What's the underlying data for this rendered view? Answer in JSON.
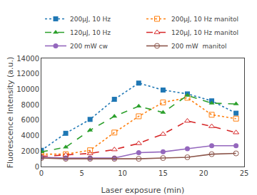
{
  "chart_data": {
    "type": "line",
    "xlabel": "Laser exposure (min)",
    "ylabel": "Fluorescence Intensity (a.u.)",
    "x": [
      0,
      3,
      6,
      9,
      12,
      15,
      18,
      21,
      24
    ],
    "series": [
      {
        "name": "200μJ, 10 Hz",
        "values": [
          2100,
          4300,
          6100,
          8700,
          10800,
          9900,
          9400,
          8500,
          6900
        ],
        "marker": "square",
        "line_style": "dot"
      },
      {
        "name": "200μJ, 10 Hz manitol",
        "values": [
          1600,
          1600,
          2100,
          4400,
          6500,
          8300,
          8900,
          6700,
          6200
        ],
        "marker": "square-open",
        "line_style": "dot"
      },
      {
        "name": "120μJ, 10 Hz",
        "values": [
          1900,
          2500,
          4700,
          6500,
          7800,
          7000,
          9200,
          8200,
          8100
        ],
        "marker": "triangle-up",
        "line_style": "dash"
      },
      {
        "name": "120μJ, 10 Hz manitol",
        "values": [
          1300,
          1500,
          1700,
          2200,
          3000,
          4200,
          5900,
          5200,
          4400
        ],
        "marker": "triangle-up-open",
        "line_style": "dash"
      },
      {
        "name": "200 mW cw",
        "values": [
          1200,
          1100,
          1100,
          1100,
          1800,
          1900,
          2300,
          2700,
          2700
        ],
        "marker": "circle",
        "line_style": "solid"
      },
      {
        "name": "200 mW  manitol",
        "values": [
          1100,
          1000,
          1000,
          1000,
          1000,
          1100,
          1200,
          1600,
          1700
        ],
        "marker": "circle-open",
        "line_style": "solid"
      }
    ],
    "xlim": [
      0,
      25
    ],
    "xticks": [
      0,
      5,
      10,
      15,
      20,
      25
    ],
    "ylim": [
      0,
      14000
    ],
    "yticks": [
      0,
      2000,
      4000,
      6000,
      8000,
      10000,
      12000,
      14000
    ],
    "grid": false,
    "legend": "upper left"
  }
}
